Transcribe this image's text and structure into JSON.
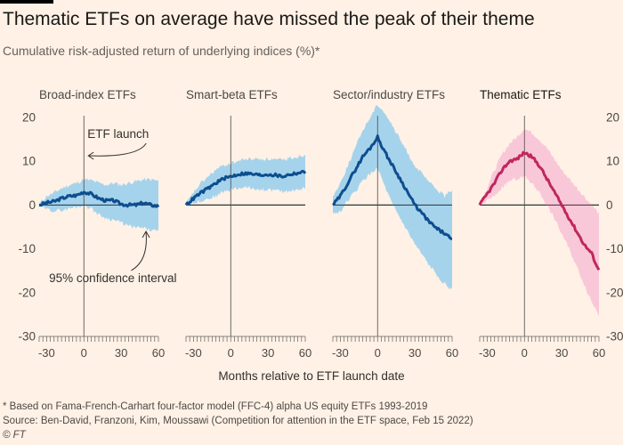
{
  "title": "Thematic ETFs on average have missed the peak of their theme",
  "subtitle": "Cumulative risk-adjusted return of underlying indices (%)*",
  "footnote": "* Based on Fama-French-Carhart four-factor model (FFC-4) alpha US equity ETFs 1993-2019",
  "source": "Source: Ben-David, Franzoni, Kim, Moussawi (Competition for attention in the ETF space, Feb 15 2022)",
  "credit": "© FT",
  "colors": {
    "background": "#fff1e5",
    "blue_line": "#0d4e8f",
    "blue_band": "#a6d3ec",
    "pink_line": "#c0275c",
    "pink_band": "#f8c8d8"
  },
  "chart_data": {
    "type": "line",
    "xlabel": "Months relative to ETF launch date",
    "ylabel": "",
    "xlim": [
      -36,
      60
    ],
    "ylim": [
      -30,
      22
    ],
    "xticks": [
      -30,
      0,
      30,
      60
    ],
    "yticks": [
      20,
      10,
      0,
      -10,
      -20,
      -30
    ],
    "x": [
      -36,
      -30,
      -24,
      -18,
      -12,
      -6,
      0,
      6,
      12,
      18,
      24,
      30,
      36,
      42,
      48,
      54,
      60
    ],
    "annotations": [
      {
        "panel": 0,
        "text": "ETF launch"
      },
      {
        "panel": 0,
        "text": "95% confidence interval"
      }
    ],
    "panels": [
      {
        "title": "Broad-index ETFs",
        "color": "blue",
        "values": [
          0,
          0.5,
          0.8,
          1.5,
          2,
          2.2,
          3,
          2.5,
          1.5,
          1,
          1,
          0.2,
          0,
          0,
          0.5,
          0,
          -0.3
        ],
        "ci_upper": [
          0.3,
          2,
          2.8,
          3.8,
          4.5,
          5,
          5.8,
          5.6,
          5,
          4.6,
          5,
          4.6,
          5,
          5.4,
          5.8,
          5.8,
          5.5
        ],
        "ci_lower": [
          -0.3,
          -1,
          -1.3,
          -1.2,
          -0.8,
          -0.5,
          0,
          -0.8,
          -2.2,
          -3,
          -3.4,
          -4,
          -4.8,
          -5.2,
          -5.3,
          -5.8,
          -6
        ]
      },
      {
        "title": "Smart-beta ETFs",
        "color": "blue",
        "values": [
          0,
          1.5,
          2.8,
          3.8,
          5,
          6,
          6.5,
          7,
          7.2,
          7,
          6.8,
          7,
          6.8,
          6.5,
          7,
          7.3,
          7.5
        ],
        "ci_upper": [
          0.3,
          2.8,
          5,
          6.5,
          8,
          9,
          9.5,
          10,
          10.5,
          10.5,
          10.5,
          10.5,
          10.3,
          10.2,
          10.8,
          11,
          11.5
        ],
        "ci_lower": [
          -0.3,
          0.5,
          1,
          1.5,
          2,
          3,
          3.5,
          3.8,
          4,
          3.8,
          3.5,
          3.5,
          3.3,
          3,
          3.3,
          3.5,
          3.8
        ]
      },
      {
        "title": "Sector/industry ETFs",
        "color": "blue",
        "values": [
          0,
          2,
          5,
          8,
          11,
          13,
          15.5,
          12,
          9,
          6,
          3,
          0,
          -2,
          -4,
          -5.5,
          -6.5,
          -8
        ],
        "ci_upper": [
          2,
          5,
          9,
          13,
          17,
          20,
          23,
          21,
          18,
          15,
          12,
          9,
          7,
          5,
          3.5,
          2,
          3.5
        ],
        "ci_lower": [
          -2,
          -1.5,
          1,
          3,
          5.5,
          7,
          8.5,
          4,
          0,
          -3,
          -6,
          -9,
          -11.5,
          -14,
          -16,
          -18,
          -19.5
        ]
      },
      {
        "title": "Thematic ETFs",
        "color": "pink",
        "values": [
          0,
          2.5,
          5,
          8,
          10,
          10.5,
          12,
          11,
          9,
          6,
          3,
          0,
          -3,
          -6,
          -9,
          -11,
          -15
        ],
        "ci_upper": [
          0.2,
          4,
          8,
          11.5,
          14,
          15.5,
          17.5,
          16.5,
          15,
          13,
          10.5,
          8,
          6,
          4,
          2,
          0,
          -2
        ],
        "ci_lower": [
          -0.2,
          1,
          2,
          4,
          5.5,
          6,
          6.5,
          5,
          3,
          0,
          -3,
          -6.5,
          -10,
          -14,
          -18,
          -22,
          -25
        ]
      }
    ]
  }
}
